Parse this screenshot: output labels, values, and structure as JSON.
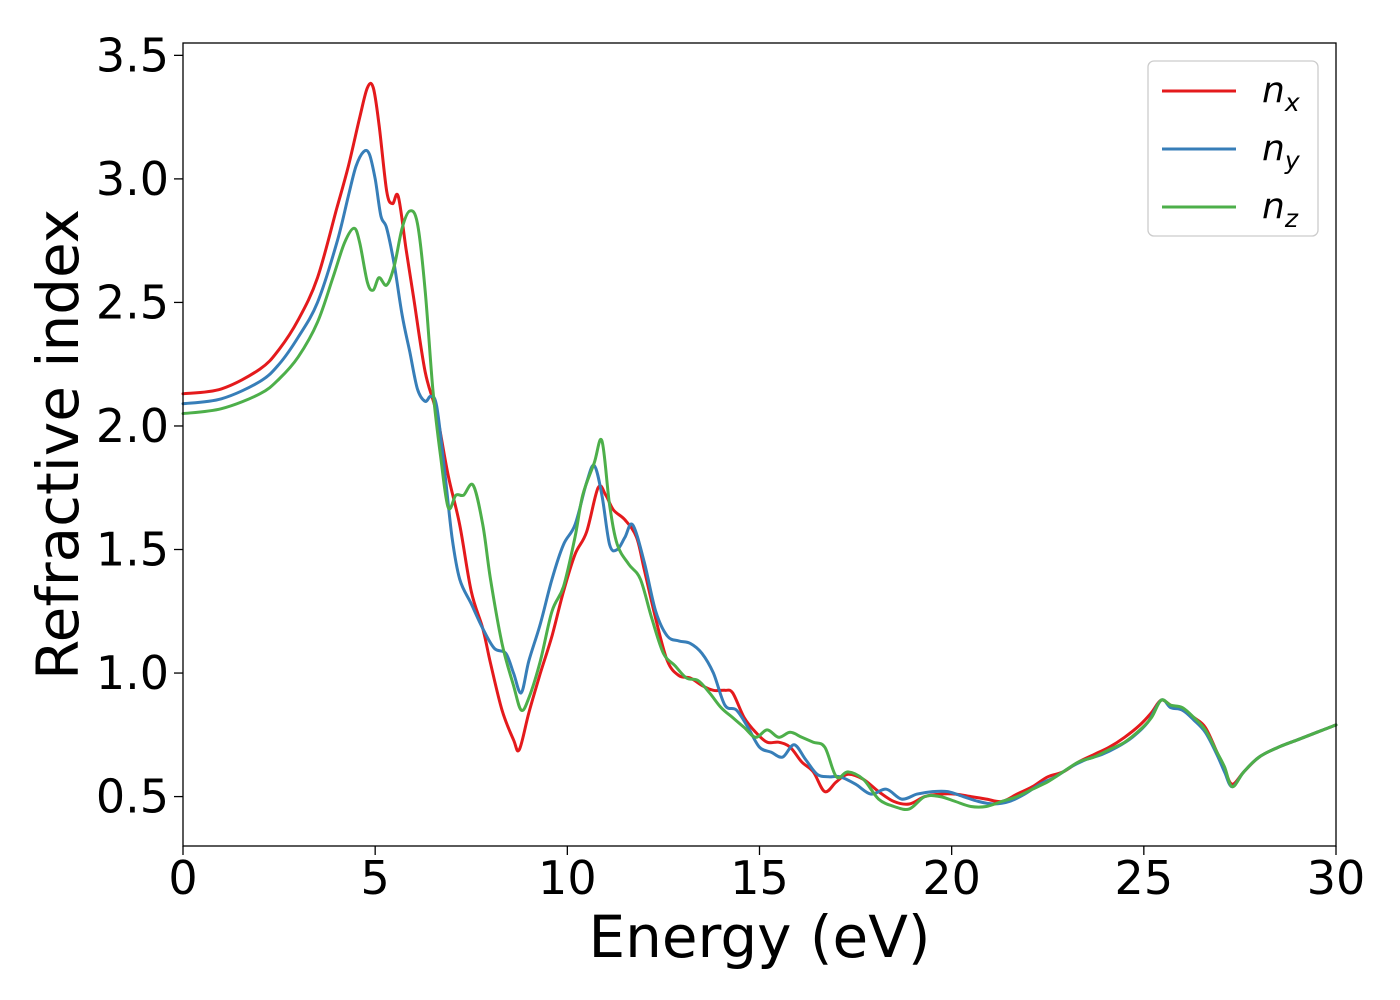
{
  "chart_data": {
    "type": "line",
    "xlabel": "Energy (eV)",
    "ylabel": "Refractive index",
    "xlim": [
      0,
      30
    ],
    "ylim": [
      0.3,
      3.55
    ],
    "xticks": [
      0,
      5,
      10,
      15,
      20,
      25,
      30
    ],
    "xtick_labels": [
      "0",
      "5",
      "10",
      "15",
      "20",
      "25",
      "30"
    ],
    "yticks": [
      0.5,
      1.0,
      1.5,
      2.0,
      2.5,
      3.0,
      3.5
    ],
    "ytick_labels": [
      "0.5",
      "1.0",
      "1.5",
      "2.0",
      "2.5",
      "3.0",
      "3.5"
    ],
    "grid": false,
    "legend_position": "top-right",
    "series": [
      {
        "name": "n_x",
        "label_base": "n",
        "label_sub": "x",
        "color": "#e41a1c",
        "x": [
          0,
          1,
          2,
          2.5,
          3,
          3.5,
          4,
          4.3,
          4.6,
          4.8,
          4.95,
          5.1,
          5.3,
          5.45,
          5.6,
          5.8,
          6.0,
          6.3,
          6.6,
          6.9,
          7.2,
          7.5,
          7.8,
          8.0,
          8.3,
          8.6,
          8.75,
          9.0,
          9.3,
          9.6,
          9.9,
          10.2,
          10.5,
          10.8,
          11.0,
          11.2,
          11.5,
          11.8,
          12.0,
          12.3,
          12.6,
          12.9,
          13.2,
          13.5,
          13.8,
          14.1,
          14.3,
          14.6,
          14.9,
          15.2,
          15.5,
          15.8,
          16.1,
          16.4,
          16.7,
          17.0,
          17.3,
          17.7,
          18.1,
          18.5,
          18.9,
          19.3,
          19.7,
          20.1,
          20.5,
          20.9,
          21.3,
          21.7,
          22.1,
          22.5,
          22.9,
          23.3,
          23.7,
          24.1,
          24.5,
          24.9,
          25.2,
          25.45,
          25.7,
          26.0,
          26.3,
          26.6,
          26.9,
          27.1,
          27.3,
          27.6,
          28.0,
          28.5,
          29.0,
          29.5,
          30.0
        ],
        "y": [
          2.13,
          2.15,
          2.23,
          2.31,
          2.43,
          2.6,
          2.88,
          3.05,
          3.25,
          3.37,
          3.37,
          3.22,
          2.95,
          2.9,
          2.93,
          2.72,
          2.52,
          2.22,
          2.05,
          1.8,
          1.6,
          1.33,
          1.18,
          1.04,
          0.85,
          0.73,
          0.69,
          0.84,
          1.0,
          1.15,
          1.33,
          1.48,
          1.57,
          1.75,
          1.72,
          1.66,
          1.62,
          1.55,
          1.42,
          1.22,
          1.05,
          0.99,
          0.98,
          0.95,
          0.93,
          0.93,
          0.92,
          0.82,
          0.76,
          0.72,
          0.72,
          0.7,
          0.64,
          0.6,
          0.52,
          0.56,
          0.59,
          0.57,
          0.52,
          0.48,
          0.47,
          0.5,
          0.51,
          0.51,
          0.5,
          0.49,
          0.48,
          0.51,
          0.54,
          0.58,
          0.6,
          0.64,
          0.67,
          0.7,
          0.74,
          0.79,
          0.84,
          0.89,
          0.87,
          0.85,
          0.82,
          0.78,
          0.68,
          0.61,
          0.55,
          0.6,
          0.66,
          0.7,
          0.73,
          0.76,
          0.79
        ]
      },
      {
        "name": "n_y",
        "label_base": "n",
        "label_sub": "y",
        "color": "#377eb8",
        "x": [
          0,
          1,
          2,
          2.5,
          3,
          3.5,
          4,
          4.3,
          4.5,
          4.7,
          4.85,
          5.0,
          5.15,
          5.3,
          5.5,
          5.7,
          5.9,
          6.1,
          6.3,
          6.45,
          6.6,
          6.8,
          7.0,
          7.2,
          7.5,
          7.8,
          8.1,
          8.4,
          8.6,
          8.8,
          9.0,
          9.3,
          9.6,
          9.9,
          10.2,
          10.5,
          10.7,
          10.9,
          11.1,
          11.3,
          11.5,
          11.7,
          12.0,
          12.3,
          12.6,
          12.9,
          13.2,
          13.5,
          13.8,
          14.1,
          14.4,
          14.7,
          15.0,
          15.3,
          15.6,
          15.9,
          16.2,
          16.5,
          16.8,
          17.1,
          17.5,
          17.9,
          18.3,
          18.7,
          19.1,
          19.5,
          19.9,
          20.3,
          20.7,
          21.1,
          21.5,
          21.9,
          22.3,
          22.7,
          23.1,
          23.5,
          23.9,
          24.3,
          24.7,
          25.1,
          25.45,
          25.7,
          26.0,
          26.3,
          26.6,
          26.9,
          27.1,
          27.3,
          27.6,
          28.0,
          28.5,
          29.0,
          29.5,
          30.0
        ],
        "y": [
          2.09,
          2.11,
          2.18,
          2.25,
          2.36,
          2.5,
          2.74,
          2.93,
          3.05,
          3.11,
          3.1,
          3.0,
          2.85,
          2.8,
          2.65,
          2.45,
          2.3,
          2.15,
          2.1,
          2.12,
          2.08,
          1.83,
          1.55,
          1.38,
          1.28,
          1.18,
          1.1,
          1.08,
          1.0,
          0.92,
          1.05,
          1.2,
          1.38,
          1.52,
          1.6,
          1.77,
          1.84,
          1.72,
          1.52,
          1.5,
          1.55,
          1.6,
          1.45,
          1.25,
          1.15,
          1.13,
          1.12,
          1.08,
          1.0,
          0.87,
          0.85,
          0.78,
          0.7,
          0.68,
          0.66,
          0.71,
          0.65,
          0.59,
          0.58,
          0.58,
          0.55,
          0.51,
          0.53,
          0.49,
          0.51,
          0.52,
          0.52,
          0.5,
          0.48,
          0.47,
          0.48,
          0.51,
          0.55,
          0.58,
          0.62,
          0.65,
          0.67,
          0.7,
          0.74,
          0.8,
          0.89,
          0.86,
          0.85,
          0.81,
          0.76,
          0.67,
          0.6,
          0.54,
          0.6,
          0.66,
          0.7,
          0.73,
          0.76,
          0.79
        ]
      },
      {
        "name": "n_z",
        "label_base": "n",
        "label_sub": "z",
        "color": "#4daf4a",
        "x": [
          0,
          1,
          2,
          2.5,
          3,
          3.5,
          3.9,
          4.2,
          4.45,
          4.6,
          4.8,
          4.95,
          5.1,
          5.3,
          5.5,
          5.7,
          5.9,
          6.1,
          6.3,
          6.5,
          6.7,
          6.9,
          7.1,
          7.3,
          7.55,
          7.8,
          8.0,
          8.3,
          8.6,
          8.8,
          9.0,
          9.3,
          9.6,
          9.9,
          10.2,
          10.4,
          10.7,
          10.9,
          11.1,
          11.3,
          11.6,
          11.9,
          12.2,
          12.5,
          12.8,
          13.1,
          13.4,
          13.7,
          14.0,
          14.3,
          14.6,
          14.9,
          15.2,
          15.5,
          15.8,
          16.1,
          16.4,
          16.7,
          17.0,
          17.3,
          17.7,
          18.1,
          18.5,
          18.9,
          19.3,
          19.7,
          20.1,
          20.5,
          20.9,
          21.3,
          21.7,
          22.1,
          22.5,
          22.9,
          23.3,
          23.7,
          24.1,
          24.5,
          24.9,
          25.2,
          25.45,
          25.7,
          26.0,
          26.3,
          26.6,
          26.9,
          27.1,
          27.3,
          27.6,
          28.0,
          28.5,
          29.0,
          29.5,
          30.0
        ],
        "y": [
          2.05,
          2.07,
          2.13,
          2.19,
          2.28,
          2.42,
          2.6,
          2.74,
          2.8,
          2.74,
          2.58,
          2.55,
          2.6,
          2.57,
          2.65,
          2.8,
          2.87,
          2.82,
          2.55,
          2.15,
          1.88,
          1.67,
          1.72,
          1.72,
          1.76,
          1.6,
          1.38,
          1.12,
          0.95,
          0.85,
          0.9,
          1.05,
          1.25,
          1.35,
          1.55,
          1.72,
          1.85,
          1.94,
          1.68,
          1.52,
          1.44,
          1.38,
          1.22,
          1.08,
          1.03,
          0.98,
          0.97,
          0.92,
          0.86,
          0.82,
          0.78,
          0.74,
          0.77,
          0.74,
          0.76,
          0.74,
          0.72,
          0.7,
          0.58,
          0.6,
          0.57,
          0.49,
          0.46,
          0.45,
          0.5,
          0.5,
          0.48,
          0.46,
          0.46,
          0.48,
          0.5,
          0.53,
          0.56,
          0.6,
          0.64,
          0.66,
          0.69,
          0.72,
          0.77,
          0.82,
          0.89,
          0.87,
          0.86,
          0.82,
          0.77,
          0.68,
          0.62,
          0.54,
          0.6,
          0.66,
          0.7,
          0.73,
          0.76,
          0.79
        ]
      }
    ]
  }
}
